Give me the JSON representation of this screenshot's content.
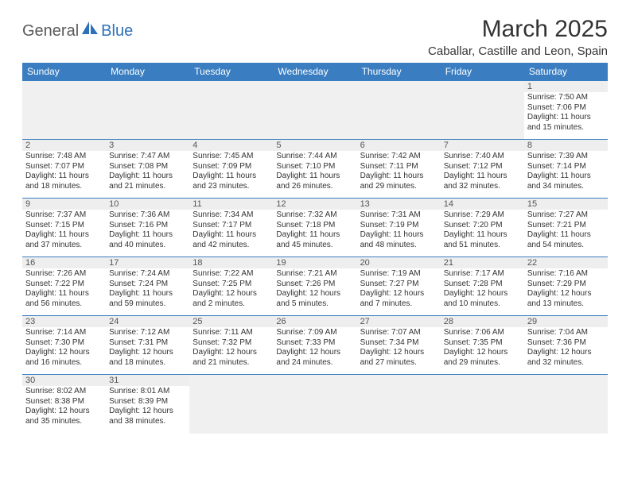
{
  "logo": {
    "text1": "General",
    "text2": "Blue"
  },
  "title": "March 2025",
  "location": "Caballar, Castille and Leon, Spain",
  "colors": {
    "header_bg": "#3a7ec1",
    "header_text": "#ffffff",
    "daynum_bg": "#eeeeee",
    "daynum_text": "#555555",
    "cell_border": "#3a7ec1",
    "blank_bg": "#f0f0f0",
    "body_text": "#333333",
    "logo_gray": "#5a5a5a",
    "logo_blue": "#2d70b8"
  },
  "weekdays": [
    "Sunday",
    "Monday",
    "Tuesday",
    "Wednesday",
    "Thursday",
    "Friday",
    "Saturday"
  ],
  "weeks": [
    [
      null,
      null,
      null,
      null,
      null,
      null,
      {
        "n": "1",
        "sr": "7:50 AM",
        "ss": "7:06 PM",
        "dl": "11 hours and 15 minutes."
      }
    ],
    [
      {
        "n": "2",
        "sr": "7:48 AM",
        "ss": "7:07 PM",
        "dl": "11 hours and 18 minutes."
      },
      {
        "n": "3",
        "sr": "7:47 AM",
        "ss": "7:08 PM",
        "dl": "11 hours and 21 minutes."
      },
      {
        "n": "4",
        "sr": "7:45 AM",
        "ss": "7:09 PM",
        "dl": "11 hours and 23 minutes."
      },
      {
        "n": "5",
        "sr": "7:44 AM",
        "ss": "7:10 PM",
        "dl": "11 hours and 26 minutes."
      },
      {
        "n": "6",
        "sr": "7:42 AM",
        "ss": "7:11 PM",
        "dl": "11 hours and 29 minutes."
      },
      {
        "n": "7",
        "sr": "7:40 AM",
        "ss": "7:12 PM",
        "dl": "11 hours and 32 minutes."
      },
      {
        "n": "8",
        "sr": "7:39 AM",
        "ss": "7:14 PM",
        "dl": "11 hours and 34 minutes."
      }
    ],
    [
      {
        "n": "9",
        "sr": "7:37 AM",
        "ss": "7:15 PM",
        "dl": "11 hours and 37 minutes."
      },
      {
        "n": "10",
        "sr": "7:36 AM",
        "ss": "7:16 PM",
        "dl": "11 hours and 40 minutes."
      },
      {
        "n": "11",
        "sr": "7:34 AM",
        "ss": "7:17 PM",
        "dl": "11 hours and 42 minutes."
      },
      {
        "n": "12",
        "sr": "7:32 AM",
        "ss": "7:18 PM",
        "dl": "11 hours and 45 minutes."
      },
      {
        "n": "13",
        "sr": "7:31 AM",
        "ss": "7:19 PM",
        "dl": "11 hours and 48 minutes."
      },
      {
        "n": "14",
        "sr": "7:29 AM",
        "ss": "7:20 PM",
        "dl": "11 hours and 51 minutes."
      },
      {
        "n": "15",
        "sr": "7:27 AM",
        "ss": "7:21 PM",
        "dl": "11 hours and 54 minutes."
      }
    ],
    [
      {
        "n": "16",
        "sr": "7:26 AM",
        "ss": "7:22 PM",
        "dl": "11 hours and 56 minutes."
      },
      {
        "n": "17",
        "sr": "7:24 AM",
        "ss": "7:24 PM",
        "dl": "11 hours and 59 minutes."
      },
      {
        "n": "18",
        "sr": "7:22 AM",
        "ss": "7:25 PM",
        "dl": "12 hours and 2 minutes."
      },
      {
        "n": "19",
        "sr": "7:21 AM",
        "ss": "7:26 PM",
        "dl": "12 hours and 5 minutes."
      },
      {
        "n": "20",
        "sr": "7:19 AM",
        "ss": "7:27 PM",
        "dl": "12 hours and 7 minutes."
      },
      {
        "n": "21",
        "sr": "7:17 AM",
        "ss": "7:28 PM",
        "dl": "12 hours and 10 minutes."
      },
      {
        "n": "22",
        "sr": "7:16 AM",
        "ss": "7:29 PM",
        "dl": "12 hours and 13 minutes."
      }
    ],
    [
      {
        "n": "23",
        "sr": "7:14 AM",
        "ss": "7:30 PM",
        "dl": "12 hours and 16 minutes."
      },
      {
        "n": "24",
        "sr": "7:12 AM",
        "ss": "7:31 PM",
        "dl": "12 hours and 18 minutes."
      },
      {
        "n": "25",
        "sr": "7:11 AM",
        "ss": "7:32 PM",
        "dl": "12 hours and 21 minutes."
      },
      {
        "n": "26",
        "sr": "7:09 AM",
        "ss": "7:33 PM",
        "dl": "12 hours and 24 minutes."
      },
      {
        "n": "27",
        "sr": "7:07 AM",
        "ss": "7:34 PM",
        "dl": "12 hours and 27 minutes."
      },
      {
        "n": "28",
        "sr": "7:06 AM",
        "ss": "7:35 PM",
        "dl": "12 hours and 29 minutes."
      },
      {
        "n": "29",
        "sr": "7:04 AM",
        "ss": "7:36 PM",
        "dl": "12 hours and 32 minutes."
      }
    ],
    [
      {
        "n": "30",
        "sr": "8:02 AM",
        "ss": "8:38 PM",
        "dl": "12 hours and 35 minutes."
      },
      {
        "n": "31",
        "sr": "8:01 AM",
        "ss": "8:39 PM",
        "dl": "12 hours and 38 minutes."
      },
      null,
      null,
      null,
      null,
      null
    ]
  ],
  "labels": {
    "sunrise": "Sunrise:",
    "sunset": "Sunset:",
    "daylight": "Daylight:"
  }
}
